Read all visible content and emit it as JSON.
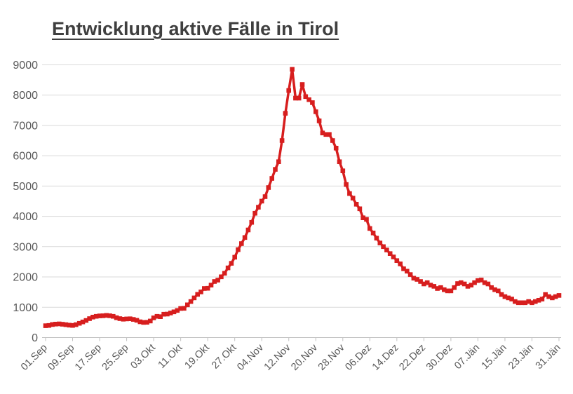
{
  "chart_data": {
    "type": "line",
    "title": "Entwicklung aktive Fälle in Tirol",
    "xlabel": "",
    "ylabel": "",
    "ylim": [
      0,
      9000
    ],
    "y_ticks": [
      0,
      1000,
      2000,
      3000,
      4000,
      5000,
      6000,
      7000,
      8000,
      9000
    ],
    "grid": "horizontal",
    "legend": "none",
    "marker": "square",
    "line_color": "#d71e1e",
    "grid_color": "#d9d9d9",
    "axis_color": "#c0c0c0",
    "tick_label_color": "#595959",
    "title_color": "#3f3f3f",
    "x_tick_step_days": 8,
    "x_tick_labels": [
      "01.Sep",
      "09.Sep",
      "17.Sep",
      "25.Sep",
      "03.Okt",
      "11.Okt",
      "19.Okt",
      "27.Okt",
      "04.Nov",
      "12.Nov",
      "20.Nov",
      "28.Nov",
      "06.Dez",
      "14.Dez",
      "22.Dez",
      "30.Dez",
      "07.Jän",
      "15.Jän",
      "23.Jän",
      "31.Jän"
    ],
    "values": [
      390,
      400,
      430,
      445,
      450,
      440,
      425,
      410,
      400,
      425,
      470,
      515,
      565,
      625,
      675,
      700,
      715,
      720,
      730,
      720,
      700,
      655,
      625,
      605,
      615,
      620,
      600,
      570,
      520,
      500,
      505,
      545,
      650,
      700,
      690,
      770,
      775,
      810,
      850,
      895,
      960,
      965,
      1080,
      1190,
      1310,
      1425,
      1505,
      1620,
      1625,
      1730,
      1850,
      1895,
      2005,
      2120,
      2300,
      2450,
      2650,
      2900,
      3100,
      3300,
      3550,
      3800,
      4100,
      4300,
      4500,
      4650,
      4950,
      5250,
      5550,
      5800,
      6500,
      7400,
      8150,
      8850,
      7900,
      7900,
      8350,
      7950,
      7850,
      7750,
      7450,
      7150,
      6750,
      6700,
      6700,
      6500,
      6250,
      5800,
      5500,
      5050,
      4750,
      4600,
      4400,
      4250,
      3950,
      3900,
      3600,
      3450,
      3280,
      3120,
      3000,
      2890,
      2770,
      2660,
      2540,
      2430,
      2270,
      2190,
      2080,
      1960,
      1920,
      1850,
      1770,
      1810,
      1730,
      1690,
      1620,
      1650,
      1580,
      1540,
      1540,
      1650,
      1780,
      1810,
      1770,
      1690,
      1730,
      1810,
      1880,
      1900,
      1810,
      1770,
      1650,
      1580,
      1540,
      1420,
      1350,
      1310,
      1270,
      1190,
      1150,
      1150,
      1150,
      1190,
      1150,
      1190,
      1230,
      1270,
      1420,
      1350,
      1310,
      1350,
      1390
    ]
  }
}
